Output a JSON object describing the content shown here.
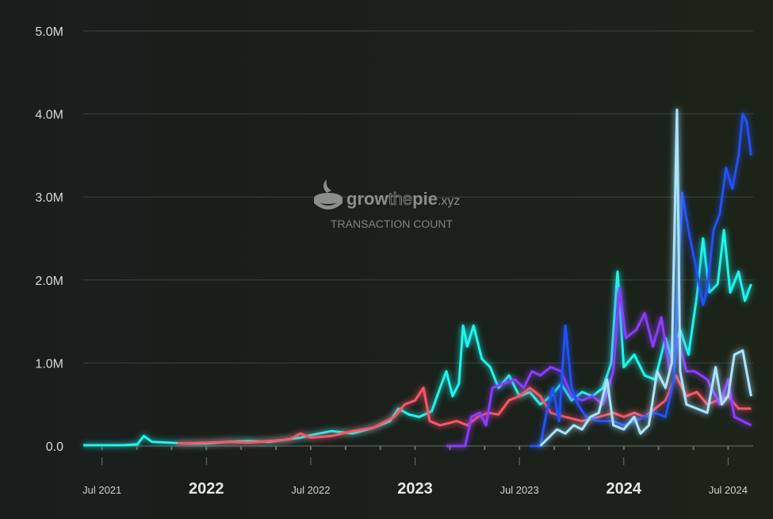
{
  "chart_data": {
    "type": "line",
    "title": "TRANSACTION COUNT",
    "watermark": "growthepie.xyz",
    "watermark_parts": {
      "a": "grow",
      "b": "the",
      "c": "pie",
      "d": ".xyz"
    },
    "xlabel": "",
    "ylabel": "",
    "ylim": [
      0,
      5000000
    ],
    "xlim": [
      2021.41,
      2024.62
    ],
    "grid": true,
    "y_ticks": [
      {
        "value": 0,
        "label": "0.0"
      },
      {
        "value": 1000000,
        "label": "1.0M"
      },
      {
        "value": 2000000,
        "label": "2.0M"
      },
      {
        "value": 3000000,
        "label": "3.0M"
      },
      {
        "value": 4000000,
        "label": "4.0M"
      },
      {
        "value": 5000000,
        "label": "5.0M"
      }
    ],
    "x_ticks": [
      {
        "value": 2021.5,
        "label": "Jul 2021",
        "major": false
      },
      {
        "value": 2022.0,
        "label": "2022",
        "major": true
      },
      {
        "value": 2022.5,
        "label": "Jul 2022",
        "major": false
      },
      {
        "value": 2023.0,
        "label": "2023",
        "major": true
      },
      {
        "value": 2023.5,
        "label": "Jul 2023",
        "major": false
      },
      {
        "value": 2024.0,
        "label": "2024",
        "major": true
      },
      {
        "value": 2024.5,
        "label": "Jul 2024",
        "major": false
      }
    ],
    "series": [
      {
        "color": "#1DF7EF",
        "points": [
          [
            2021.41,
            0.01
          ],
          [
            2021.6,
            0.01
          ],
          [
            2021.67,
            0.02
          ],
          [
            2021.7,
            0.12
          ],
          [
            2021.74,
            0.05
          ],
          [
            2021.9,
            0.03
          ],
          [
            2022.0,
            0.03
          ],
          [
            2022.1,
            0.05
          ],
          [
            2022.2,
            0.06
          ],
          [
            2022.3,
            0.05
          ],
          [
            2022.45,
            0.1
          ],
          [
            2022.5,
            0.13
          ],
          [
            2022.6,
            0.18
          ],
          [
            2022.7,
            0.15
          ],
          [
            2022.8,
            0.22
          ],
          [
            2022.88,
            0.3
          ],
          [
            2022.92,
            0.45
          ],
          [
            2022.97,
            0.38
          ],
          [
            2023.02,
            0.35
          ],
          [
            2023.08,
            0.42
          ],
          [
            2023.12,
            0.7
          ],
          [
            2023.15,
            0.9
          ],
          [
            2023.18,
            0.6
          ],
          [
            2023.21,
            0.75
          ],
          [
            2023.23,
            1.45
          ],
          [
            2023.25,
            1.2
          ],
          [
            2023.28,
            1.45
          ],
          [
            2023.32,
            1.05
          ],
          [
            2023.36,
            0.95
          ],
          [
            2023.4,
            0.7
          ],
          [
            2023.45,
            0.85
          ],
          [
            2023.5,
            0.6
          ],
          [
            2023.55,
            0.65
          ],
          [
            2023.6,
            0.5
          ],
          [
            2023.65,
            0.6
          ],
          [
            2023.7,
            0.75
          ],
          [
            2023.75,
            0.55
          ],
          [
            2023.8,
            0.65
          ],
          [
            2023.85,
            0.6
          ],
          [
            2023.9,
            0.7
          ],
          [
            2023.94,
            1.0
          ],
          [
            2023.97,
            2.1
          ],
          [
            2024.0,
            0.95
          ],
          [
            2024.05,
            1.1
          ],
          [
            2024.1,
            0.85
          ],
          [
            2024.15,
            0.8
          ],
          [
            2024.2,
            1.3
          ],
          [
            2024.23,
            1.05
          ],
          [
            2024.27,
            1.4
          ],
          [
            2024.31,
            1.1
          ],
          [
            2024.35,
            1.8
          ],
          [
            2024.38,
            2.5
          ],
          [
            2024.41,
            1.85
          ],
          [
            2024.45,
            1.95
          ],
          [
            2024.48,
            2.6
          ],
          [
            2024.51,
            1.85
          ],
          [
            2024.55,
            2.1
          ],
          [
            2024.58,
            1.75
          ],
          [
            2024.61,
            1.95
          ]
        ]
      },
      {
        "color": "#FE5468",
        "points": [
          [
            2021.86,
            0.03
          ],
          [
            2022.0,
            0.04
          ],
          [
            2022.1,
            0.05
          ],
          [
            2022.2,
            0.04
          ],
          [
            2022.3,
            0.06
          ],
          [
            2022.4,
            0.08
          ],
          [
            2022.45,
            0.15
          ],
          [
            2022.5,
            0.1
          ],
          [
            2022.6,
            0.12
          ],
          [
            2022.7,
            0.18
          ],
          [
            2022.8,
            0.22
          ],
          [
            2022.9,
            0.35
          ],
          [
            2022.95,
            0.5
          ],
          [
            2023.0,
            0.55
          ],
          [
            2023.04,
            0.7
          ],
          [
            2023.07,
            0.3
          ],
          [
            2023.12,
            0.25
          ],
          [
            2023.2,
            0.3
          ],
          [
            2023.25,
            0.25
          ],
          [
            2023.3,
            0.35
          ],
          [
            2023.35,
            0.4
          ],
          [
            2023.4,
            0.38
          ],
          [
            2023.45,
            0.55
          ],
          [
            2023.5,
            0.6
          ],
          [
            2023.55,
            0.7
          ],
          [
            2023.6,
            0.6
          ],
          [
            2023.65,
            0.4
          ],
          [
            2023.72,
            0.35
          ],
          [
            2023.8,
            0.3
          ],
          [
            2023.88,
            0.35
          ],
          [
            2023.95,
            0.4
          ],
          [
            2024.0,
            0.35
          ],
          [
            2024.05,
            0.4
          ],
          [
            2024.1,
            0.35
          ],
          [
            2024.15,
            0.45
          ],
          [
            2024.2,
            0.55
          ],
          [
            2024.25,
            0.85
          ],
          [
            2024.3,
            0.6
          ],
          [
            2024.35,
            0.65
          ],
          [
            2024.4,
            0.5
          ],
          [
            2024.45,
            0.55
          ],
          [
            2024.5,
            0.6
          ],
          [
            2024.55,
            0.45
          ],
          [
            2024.61,
            0.45
          ]
        ]
      },
      {
        "color": "#8B3CFF",
        "points": [
          [
            2023.15,
            0.0
          ],
          [
            2023.24,
            0.0
          ],
          [
            2023.27,
            0.35
          ],
          [
            2023.31,
            0.4
          ],
          [
            2023.34,
            0.25
          ],
          [
            2023.37,
            0.7
          ],
          [
            2023.42,
            0.75
          ],
          [
            2023.48,
            0.8
          ],
          [
            2023.52,
            0.7
          ],
          [
            2023.56,
            0.9
          ],
          [
            2023.6,
            0.85
          ],
          [
            2023.65,
            0.95
          ],
          [
            2023.7,
            0.9
          ],
          [
            2023.75,
            0.6
          ],
          [
            2023.8,
            0.55
          ],
          [
            2023.85,
            0.6
          ],
          [
            2023.9,
            0.5
          ],
          [
            2023.95,
            0.9
          ],
          [
            2023.98,
            1.9
          ],
          [
            2024.01,
            1.3
          ],
          [
            2024.06,
            1.4
          ],
          [
            2024.1,
            1.6
          ],
          [
            2024.14,
            1.2
          ],
          [
            2024.18,
            1.55
          ],
          [
            2024.22,
            0.9
          ],
          [
            2024.26,
            1.3
          ],
          [
            2024.3,
            0.9
          ],
          [
            2024.34,
            0.9
          ],
          [
            2024.4,
            0.8
          ],
          [
            2024.46,
            0.5
          ],
          [
            2024.5,
            0.8
          ],
          [
            2024.53,
            0.35
          ],
          [
            2024.57,
            0.3
          ],
          [
            2024.61,
            0.25
          ]
        ]
      },
      {
        "color": "#2151F5",
        "points": [
          [
            2023.55,
            0.0
          ],
          [
            2023.6,
            0.0
          ],
          [
            2023.63,
            0.4
          ],
          [
            2023.66,
            0.7
          ],
          [
            2023.69,
            0.3
          ],
          [
            2023.72,
            1.45
          ],
          [
            2023.75,
            0.7
          ],
          [
            2023.78,
            0.5
          ],
          [
            2023.82,
            0.35
          ],
          [
            2023.88,
            0.3
          ],
          [
            2023.95,
            0.3
          ],
          [
            2024.0,
            0.25
          ],
          [
            2024.05,
            0.3
          ],
          [
            2024.1,
            0.35
          ],
          [
            2024.15,
            0.4
          ],
          [
            2024.2,
            0.35
          ],
          [
            2024.24,
            0.8
          ],
          [
            2024.26,
            2.0
          ],
          [
            2024.28,
            3.05
          ],
          [
            2024.31,
            2.6
          ],
          [
            2024.35,
            2.1
          ],
          [
            2024.38,
            1.7
          ],
          [
            2024.4,
            1.9
          ],
          [
            2024.43,
            2.6
          ],
          [
            2024.46,
            2.8
          ],
          [
            2024.49,
            3.35
          ],
          [
            2024.52,
            3.1
          ],
          [
            2024.55,
            3.5
          ],
          [
            2024.57,
            4.0
          ],
          [
            2024.59,
            3.9
          ],
          [
            2024.61,
            3.5
          ]
        ]
      },
      {
        "color": "#A8E6FF",
        "points": [
          [
            2023.6,
            0.0
          ],
          [
            2023.64,
            0.1
          ],
          [
            2023.68,
            0.2
          ],
          [
            2023.72,
            0.15
          ],
          [
            2023.76,
            0.25
          ],
          [
            2023.8,
            0.2
          ],
          [
            2023.84,
            0.35
          ],
          [
            2023.88,
            0.4
          ],
          [
            2023.92,
            0.8
          ],
          [
            2023.95,
            0.25
          ],
          [
            2024.0,
            0.2
          ],
          [
            2024.05,
            0.35
          ],
          [
            2024.08,
            0.15
          ],
          [
            2024.12,
            0.25
          ],
          [
            2024.16,
            0.9
          ],
          [
            2024.2,
            0.7
          ],
          [
            2024.23,
            1.0
          ],
          [
            2024.255,
            4.05
          ],
          [
            2024.27,
            0.9
          ],
          [
            2024.3,
            0.5
          ],
          [
            2024.35,
            0.45
          ],
          [
            2024.4,
            0.4
          ],
          [
            2024.44,
            0.95
          ],
          [
            2024.47,
            0.5
          ],
          [
            2024.5,
            0.6
          ],
          [
            2024.53,
            1.1
          ],
          [
            2024.57,
            1.15
          ],
          [
            2024.61,
            0.6
          ]
        ]
      }
    ]
  }
}
